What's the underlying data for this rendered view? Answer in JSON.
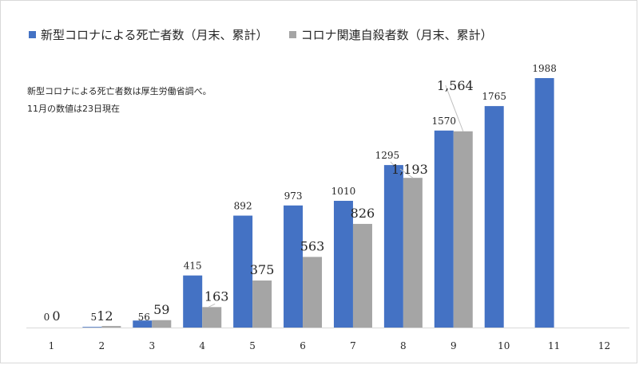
{
  "notes": {
    "line1": "新型コロナによる死亡者数は厚生労働省調べ。",
    "line2": "11月の数値は23日現在"
  },
  "chart_data": {
    "type": "bar",
    "title": "",
    "xlabel": "",
    "ylabel": "",
    "categories": [
      "1",
      "2",
      "3",
      "4",
      "5",
      "6",
      "7",
      "8",
      "9",
      "10",
      "11",
      "12"
    ],
    "ylim": [
      0,
      2100
    ],
    "grid": false,
    "legend_position": "top-left",
    "series": [
      {
        "name": "新型コロナによる死亡者数（月末、累計）",
        "color": "#4472c4",
        "values": [
          0,
          5,
          56,
          415,
          892,
          973,
          1010,
          1295,
          1570,
          1765,
          1988,
          null
        ],
        "labels": [
          "0",
          "5",
          "56",
          "415",
          "892",
          "973",
          "1010",
          "1295",
          "1570",
          "1765",
          "1988",
          ""
        ]
      },
      {
        "name": "コロナ関連自殺者数（月末、累計）",
        "color": "#a5a5a5",
        "values": [
          0,
          12,
          59,
          163,
          375,
          563,
          826,
          1193,
          1564,
          null,
          null,
          null
        ],
        "labels": [
          "0",
          "12",
          "59",
          "163",
          "375",
          "563",
          "826",
          "1,193",
          "1,564",
          "",
          "",
          ""
        ]
      }
    ]
  }
}
